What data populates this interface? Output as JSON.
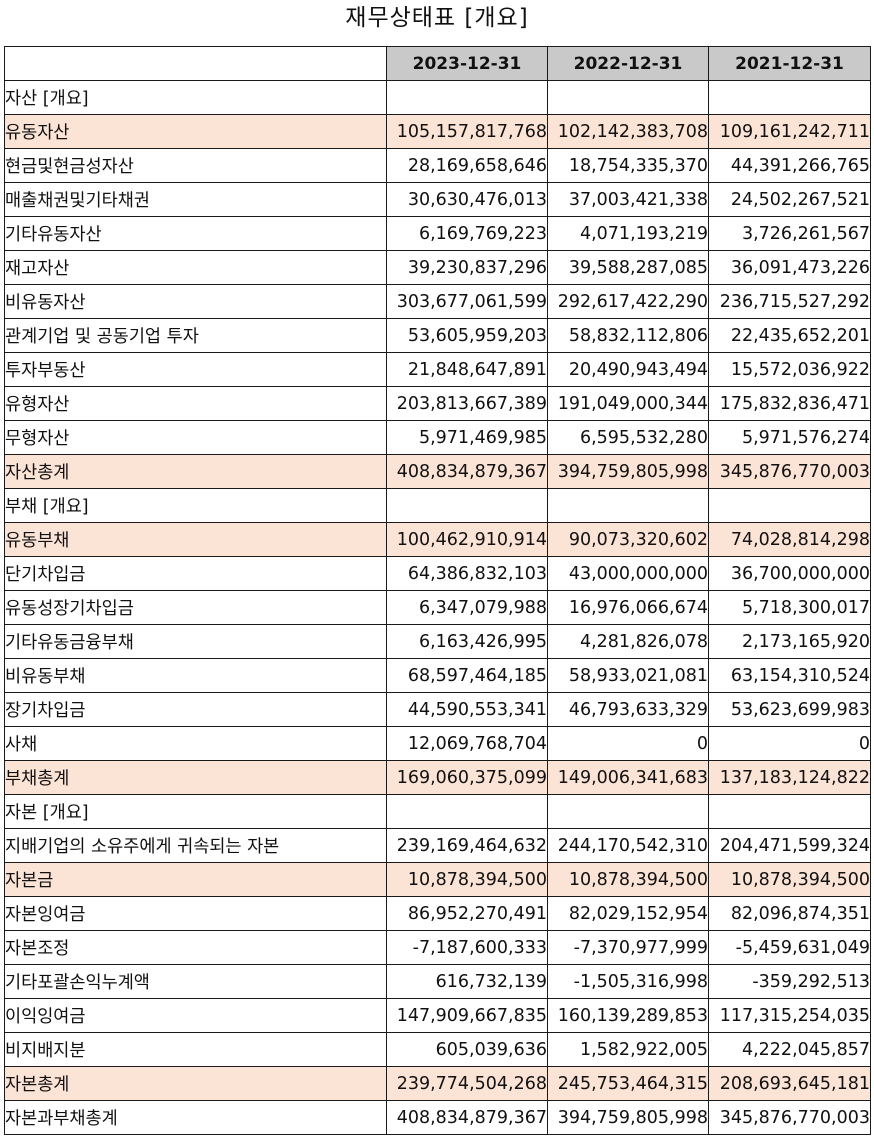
{
  "title": "재무상태표 [개요]",
  "columns": [
    "2023-12-31",
    "2022-12-31",
    "2021-12-31"
  ],
  "rows": [
    {
      "label": "자산 [개요]",
      "level": 0,
      "highlight": false,
      "values": [
        "",
        "",
        ""
      ]
    },
    {
      "label": "유동자산",
      "level": 1,
      "highlight": true,
      "values": [
        "105,157,817,768",
        "102,142,383,708",
        "109,161,242,711"
      ]
    },
    {
      "label": "현금및현금성자산",
      "level": 2,
      "highlight": false,
      "values": [
        "28,169,658,646",
        "18,754,335,370",
        "44,391,266,765"
      ]
    },
    {
      "label": "매출채권및기타채권",
      "level": 2,
      "highlight": false,
      "values": [
        "30,630,476,013",
        "37,003,421,338",
        "24,502,267,521"
      ]
    },
    {
      "label": "기타유동자산",
      "level": 2,
      "highlight": false,
      "values": [
        "6,169,769,223",
        "4,071,193,219",
        "3,726,261,567"
      ]
    },
    {
      "label": "재고자산",
      "level": 2,
      "highlight": false,
      "values": [
        "39,230,837,296",
        "39,588,287,085",
        "36,091,473,226"
      ]
    },
    {
      "label": "비유동자산",
      "level": 1,
      "highlight": false,
      "values": [
        "303,677,061,599",
        "292,617,422,290",
        "236,715,527,292"
      ]
    },
    {
      "label": "관계기업 및 공동기업 투자",
      "level": 2,
      "highlight": false,
      "values": [
        "53,605,959,203",
        "58,832,112,806",
        "22,435,652,201"
      ]
    },
    {
      "label": "투자부동산",
      "level": 2,
      "highlight": false,
      "values": [
        "21,848,647,891",
        "20,490,943,494",
        "15,572,036,922"
      ]
    },
    {
      "label": "유형자산",
      "level": 2,
      "highlight": false,
      "values": [
        "203,813,667,389",
        "191,049,000,344",
        "175,832,836,471"
      ]
    },
    {
      "label": "무형자산",
      "level": 2,
      "highlight": false,
      "values": [
        "5,971,469,985",
        "6,595,532,280",
        "5,971,576,274"
      ]
    },
    {
      "label": "자산총계",
      "level": 1,
      "highlight": true,
      "values": [
        "408,834,879,367",
        "394,759,805,998",
        "345,876,770,003"
      ]
    },
    {
      "label": "부채 [개요]",
      "level": 0,
      "highlight": false,
      "values": [
        "",
        "",
        ""
      ]
    },
    {
      "label": "유동부채",
      "level": 1,
      "highlight": true,
      "values": [
        "100,462,910,914",
        "90,073,320,602",
        "74,028,814,298"
      ]
    },
    {
      "label": "단기차입금",
      "level": 2,
      "highlight": false,
      "values": [
        "64,386,832,103",
        "43,000,000,000",
        "36,700,000,000"
      ]
    },
    {
      "label": "유동성장기차입금",
      "level": 2,
      "highlight": false,
      "values": [
        "6,347,079,988",
        "16,976,066,674",
        "5,718,300,017"
      ]
    },
    {
      "label": "기타유동금융부채",
      "level": 2,
      "highlight": false,
      "values": [
        "6,163,426,995",
        "4,281,826,078",
        "2,173,165,920"
      ]
    },
    {
      "label": "비유동부채",
      "level": 1,
      "highlight": false,
      "values": [
        "68,597,464,185",
        "58,933,021,081",
        "63,154,310,524"
      ]
    },
    {
      "label": "장기차입금",
      "level": 2,
      "highlight": false,
      "values": [
        "44,590,553,341",
        "46,793,633,329",
        "53,623,699,983"
      ]
    },
    {
      "label": "사채",
      "level": 2,
      "highlight": false,
      "values": [
        "12,069,768,704",
        "0",
        "0"
      ]
    },
    {
      "label": "부채총계",
      "level": 1,
      "highlight": true,
      "values": [
        "169,060,375,099",
        "149,006,341,683",
        "137,183,124,822"
      ]
    },
    {
      "label": "자본 [개요]",
      "level": 0,
      "highlight": false,
      "values": [
        "",
        "",
        ""
      ]
    },
    {
      "label": "지배기업의 소유주에게 귀속되는 자본",
      "level": 1,
      "highlight": false,
      "values": [
        "239,169,464,632",
        "244,170,542,310",
        "204,471,599,324"
      ]
    },
    {
      "label": "자본금",
      "level": 2,
      "highlight": true,
      "values": [
        "10,878,394,500",
        "10,878,394,500",
        "10,878,394,500"
      ]
    },
    {
      "label": "자본잉여금",
      "level": 2,
      "highlight": false,
      "values": [
        "86,952,270,491",
        "82,029,152,954",
        "82,096,874,351"
      ]
    },
    {
      "label": "자본조정",
      "level": 2,
      "highlight": false,
      "values": [
        "-7,187,600,333",
        "-7,370,977,999",
        "-5,459,631,049"
      ]
    },
    {
      "label": "기타포괄손익누계액",
      "level": 2,
      "highlight": false,
      "values": [
        "616,732,139",
        "-1,505,316,998",
        "-359,292,513"
      ]
    },
    {
      "label": "이익잉여금",
      "level": 2,
      "highlight": false,
      "values": [
        "147,909,667,835",
        "160,139,289,853",
        "117,315,254,035"
      ]
    },
    {
      "label": "비지배지분",
      "level": 1,
      "highlight": false,
      "values": [
        "605,039,636",
        "1,582,922,005",
        "4,222,045,857"
      ]
    },
    {
      "label": "자본총계",
      "level": 1,
      "highlight": true,
      "values": [
        "239,774,504,268",
        "245,753,464,315",
        "208,693,645,181"
      ]
    },
    {
      "label": "자본과부채총계",
      "level": 0,
      "highlight": false,
      "values": [
        "408,834,879,367",
        "394,759,805,998",
        "345,876,770,003"
      ]
    }
  ]
}
